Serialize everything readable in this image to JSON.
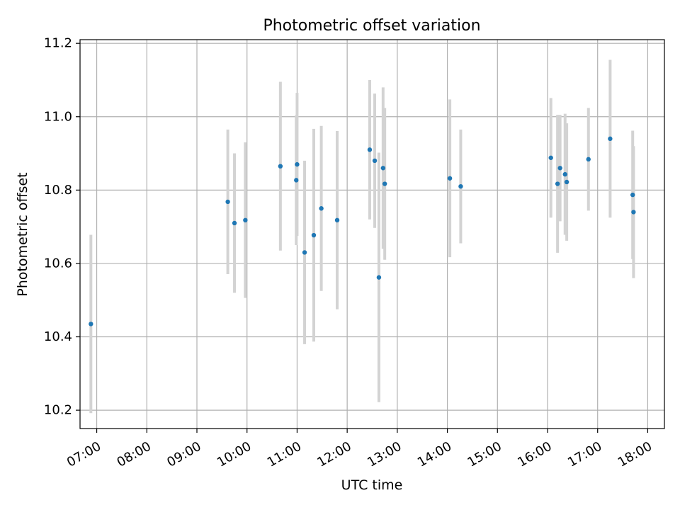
{
  "chart_data": {
    "type": "scatter",
    "title": "Photometric offset variation",
    "xlabel": "UTC time",
    "ylabel": "Photometric offset",
    "xlim": [
      "06:40",
      "18:20"
    ],
    "ylim": [
      10.15,
      11.21
    ],
    "x_ticks": [
      "07:00",
      "08:00",
      "09:00",
      "10:00",
      "11:00",
      "12:00",
      "13:00",
      "14:00",
      "15:00",
      "16:00",
      "17:00",
      "18:00"
    ],
    "y_ticks": [
      "10.2",
      "10.4",
      "10.6",
      "10.8",
      "11.0",
      "11.2"
    ],
    "grid": true,
    "colors": {
      "point": "#1f77b4",
      "errorbar": "#d3d3d3",
      "grid": "#b0b0b0"
    },
    "points": [
      {
        "x": "06:53",
        "y": 10.435,
        "err": 0.243
      },
      {
        "x": "09:37",
        "y": 10.768,
        "err": 0.197
      },
      {
        "x": "09:45",
        "y": 10.71,
        "err": 0.19
      },
      {
        "x": "09:58",
        "y": 10.718,
        "err": 0.212
      },
      {
        "x": "10:40",
        "y": 10.865,
        "err": 0.23
      },
      {
        "x": "10:59",
        "y": 10.827,
        "err": 0.177
      },
      {
        "x": "11:00",
        "y": 10.87,
        "err": 0.195
      },
      {
        "x": "11:09",
        "y": 10.63,
        "err": 0.25
      },
      {
        "x": "11:20",
        "y": 10.677,
        "err": 0.29
      },
      {
        "x": "11:29",
        "y": 10.75,
        "err": 0.225
      },
      {
        "x": "11:48",
        "y": 10.718,
        "err": 0.243
      },
      {
        "x": "12:27",
        "y": 10.91,
        "err": 0.19
      },
      {
        "x": "12:33",
        "y": 10.88,
        "err": 0.183
      },
      {
        "x": "12:38",
        "y": 10.562,
        "err": 0.34
      },
      {
        "x": "12:43",
        "y": 10.86,
        "err": 0.22
      },
      {
        "x": "12:45",
        "y": 10.817,
        "err": 0.207
      },
      {
        "x": "14:03",
        "y": 10.832,
        "err": 0.215
      },
      {
        "x": "14:16",
        "y": 10.81,
        "err": 0.155
      },
      {
        "x": "16:04",
        "y": 10.888,
        "err": 0.163
      },
      {
        "x": "16:12",
        "y": 10.817,
        "err": 0.188
      },
      {
        "x": "16:15",
        "y": 10.86,
        "err": 0.145
      },
      {
        "x": "16:21",
        "y": 10.843,
        "err": 0.165
      },
      {
        "x": "16:23",
        "y": 10.822,
        "err": 0.16
      },
      {
        "x": "16:49",
        "y": 10.884,
        "err": 0.14
      },
      {
        "x": "17:15",
        "y": 10.94,
        "err": 0.215
      },
      {
        "x": "17:42",
        "y": 10.787,
        "err": 0.175
      },
      {
        "x": "17:43",
        "y": 10.74,
        "err": 0.18
      }
    ]
  }
}
